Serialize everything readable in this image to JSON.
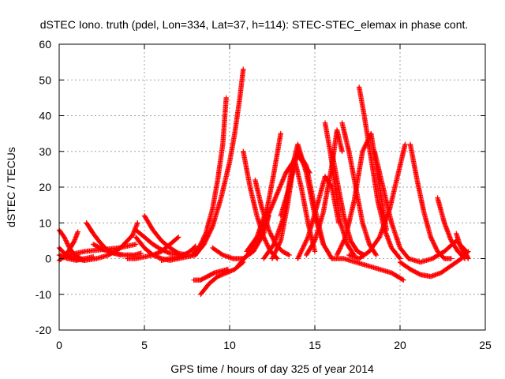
{
  "chart_data": {
    "type": "scatter",
    "title": "dSTEC Iono. truth (pdel, Lon=334, Lat=37, h=114): STEC-STEC_elemax in phase cont.",
    "xlabel": "GPS time / hours of day 325 of year 2014",
    "ylabel": "dSTEC  / TECUs",
    "xlim": [
      0,
      25
    ],
    "ylim": [
      -20,
      60
    ],
    "xticks": [
      0,
      5,
      10,
      15,
      20,
      25
    ],
    "xtick_labels": [
      "0",
      "5",
      "10",
      "15",
      "20",
      "25"
    ],
    "yticks": [
      -20,
      -10,
      0,
      10,
      20,
      30,
      40,
      50,
      60
    ],
    "ytick_labels": [
      "-20",
      "-10",
      "0",
      "10",
      "20",
      "30",
      "40",
      "50",
      "60"
    ],
    "grid": true,
    "marker": "+",
    "series_color": "#ff0000",
    "series": [
      {
        "x": [
          0.0,
          0.3,
          0.6,
          0.9,
          1.2,
          1.5
        ],
        "y": [
          8,
          6,
          3,
          1,
          0,
          -0.5
        ]
      },
      {
        "x": [
          0.0,
          0.4,
          0.8,
          1.2
        ],
        "y": [
          3,
          1,
          0,
          0.5
        ]
      },
      {
        "x": [
          0.0,
          0.5,
          1.0,
          1.5,
          2.0
        ],
        "y": [
          1,
          0,
          -0.5,
          0,
          0.5
        ]
      },
      {
        "x": [
          0.0,
          0.3,
          0.6,
          0.9,
          1.1
        ],
        "y": [
          -0.5,
          0.5,
          2.5,
          5,
          7.5
        ]
      },
      {
        "x": [
          1.6,
          2.0,
          2.4,
          2.8,
          3.2,
          3.6
        ],
        "y": [
          10,
          7,
          4.5,
          2.5,
          1.5,
          1
        ]
      },
      {
        "x": [
          0.8,
          1.5,
          2.2,
          2.9,
          3.6,
          4.3,
          4.6
        ],
        "y": [
          0,
          -0.5,
          0,
          1,
          3,
          6.5,
          10
        ]
      },
      {
        "x": [
          0.5,
          1.5,
          2.5,
          3.5,
          4.5
        ],
        "y": [
          1,
          2,
          2.5,
          3,
          4
        ]
      },
      {
        "x": [
          2.0,
          2.6,
          3.2,
          3.8,
          4.4,
          4.8
        ],
        "y": [
          4,
          2.5,
          1.5,
          1,
          1,
          1.5
        ]
      },
      {
        "x": [
          4.5,
          5.0,
          5.5,
          6.0,
          6.5,
          7.0
        ],
        "y": [
          8,
          6,
          4,
          2.5,
          1.5,
          1
        ]
      },
      {
        "x": [
          5.0,
          5.5,
          6.0,
          6.5,
          7.0,
          7.5
        ],
        "y": [
          12,
          8,
          5,
          3,
          1.5,
          1
        ]
      },
      {
        "x": [
          4.5,
          5.0,
          5.5,
          6.0,
          6.5,
          7.0,
          7.5,
          8.0
        ],
        "y": [
          6,
          3,
          1,
          0,
          -0.5,
          0,
          0.5,
          1
        ]
      },
      {
        "x": [
          4.0,
          4.5,
          5.0,
          5.5,
          6.0,
          6.5,
          7.0
        ],
        "y": [
          0,
          0,
          0.5,
          1,
          2,
          4,
          6
        ]
      },
      {
        "x": [
          6.0,
          6.5,
          7.0,
          7.5,
          7.8,
          8.0
        ],
        "y": [
          -0.5,
          0,
          0.5,
          1.5,
          2.5,
          3.5
        ]
      },
      {
        "x": [
          7.8,
          8.2,
          8.6,
          9.0,
          9.3,
          9.6,
          9.8
        ],
        "y": [
          1,
          3,
          7,
          14,
          22,
          32,
          45
        ]
      },
      {
        "x": [
          8.0,
          8.5,
          9.0,
          9.5,
          10.0,
          10.3,
          10.6,
          10.8
        ],
        "y": [
          1,
          4,
          9,
          17,
          27,
          35,
          45,
          53
        ]
      },
      {
        "x": [
          7.9,
          8.3,
          8.7,
          9.1,
          9.5,
          9.9
        ],
        "y": [
          -6,
          -6,
          -5,
          -4,
          -3.5,
          -3
        ]
      },
      {
        "x": [
          8.3,
          8.8,
          9.3,
          9.8,
          10.3,
          10.8
        ],
        "y": [
          -10,
          -7,
          -5,
          -4,
          -3,
          -1
        ]
      },
      {
        "x": [
          9.0,
          9.6,
          10.2,
          10.8,
          11.4,
          12.0,
          12.3
        ],
        "y": [
          3,
          1,
          0,
          0,
          2,
          7,
          12
        ]
      },
      {
        "x": [
          10.8,
          11.2,
          11.6,
          12.0,
          12.4,
          12.8
        ],
        "y": [
          30,
          20,
          12,
          6,
          2,
          0
        ]
      },
      {
        "x": [
          11.5,
          11.9,
          12.3,
          12.7,
          13.1,
          13.5
        ],
        "y": [
          22,
          14,
          8,
          4,
          2,
          1
        ]
      },
      {
        "x": [
          11.0,
          11.6,
          12.2,
          12.6,
          13.0
        ],
        "y": [
          2,
          6,
          14,
          24,
          35
        ]
      },
      {
        "x": [
          10.5,
          11.2,
          11.9,
          12.6,
          13.3,
          14.0,
          14.7
        ],
        "y": [
          -2,
          2,
          8,
          16,
          24,
          29,
          24
        ]
      },
      {
        "x": [
          12.5,
          13.0,
          13.4,
          13.8,
          14.2,
          14.6,
          15.0
        ],
        "y": [
          0,
          5,
          15,
          28,
          20,
          10,
          2
        ]
      },
      {
        "x": [
          12.0,
          12.6,
          13.2,
          13.6,
          14.0,
          14.5,
          15.0,
          15.5
        ],
        "y": [
          0,
          4,
          12,
          24,
          32,
          24,
          12,
          4
        ]
      },
      {
        "x": [
          13.0,
          13.5,
          14.0,
          14.5,
          15.0,
          15.5,
          16.0
        ],
        "y": [
          12,
          20,
          30,
          26,
          14,
          4,
          0
        ]
      },
      {
        "x": [
          14.0,
          14.6,
          15.2,
          15.6,
          16.0,
          16.4
        ],
        "y": [
          0,
          6,
          16,
          23,
          20,
          10
        ]
      },
      {
        "x": [
          14.5,
          15.0,
          15.5,
          16.0,
          16.3,
          16.6
        ],
        "y": [
          1,
          5,
          13,
          26,
          36,
          30
        ]
      },
      {
        "x": [
          15.6,
          15.9,
          16.2,
          16.5,
          16.9,
          17.3
        ],
        "y": [
          38,
          30,
          20,
          10,
          4,
          1
        ]
      },
      {
        "x": [
          16.0,
          16.3,
          16.7,
          17.1,
          17.5,
          17.9
        ],
        "y": [
          30,
          22,
          12,
          5,
          2,
          1
        ]
      },
      {
        "x": [
          16.6,
          17.0,
          17.4,
          17.8,
          18.2,
          18.6
        ],
        "y": [
          38,
          30,
          20,
          10,
          4,
          1
        ]
      },
      {
        "x": [
          16.3,
          16.8,
          17.3,
          17.8,
          18.3,
          18.8,
          19.2
        ],
        "y": [
          1,
          6,
          16,
          30,
          35,
          20,
          8
        ]
      },
      {
        "x": [
          17.6,
          17.9,
          18.3,
          18.7,
          19.1,
          19.5,
          20.0
        ],
        "y": [
          48,
          40,
          28,
          16,
          8,
          3,
          0
        ]
      },
      {
        "x": [
          17.0,
          17.6,
          18.2,
          18.8,
          19.4,
          20.0,
          20.3
        ],
        "y": [
          1,
          0,
          2,
          6,
          14,
          26,
          32
        ]
      },
      {
        "x": [
          16.0,
          16.7,
          17.4,
          18.1,
          18.8,
          19.5,
          20.2
        ],
        "y": [
          0,
          0,
          -1,
          -2,
          -3,
          -4,
          -6
        ]
      },
      {
        "x": [
          18.5,
          19.0,
          19.5,
          20.0,
          20.5
        ],
        "y": [
          30,
          20,
          10,
          3,
          0
        ]
      },
      {
        "x": [
          20.6,
          21.0,
          21.4,
          21.8,
          22.2,
          22.6,
          23.0
        ],
        "y": [
          32,
          22,
          13,
          6,
          2,
          0,
          0
        ]
      },
      {
        "x": [
          20.0,
          20.6,
          21.2,
          21.8,
          22.4,
          23.0,
          23.6,
          24.0
        ],
        "y": [
          -1,
          -3,
          -4.5,
          -5,
          -4,
          -2,
          0,
          2
        ]
      },
      {
        "x": [
          20.5,
          21.2,
          21.9,
          22.6,
          23.3,
          23.9
        ],
        "y": [
          0,
          -1,
          0,
          2,
          5,
          2
        ]
      },
      {
        "x": [
          22.2,
          22.6,
          23.0,
          23.4,
          23.8
        ],
        "y": [
          17,
          10,
          5,
          2,
          0
        ]
      },
      {
        "x": [
          23.3,
          23.5,
          23.7,
          23.9,
          24.0
        ],
        "y": [
          7,
          4,
          2,
          1,
          0
        ]
      }
    ]
  }
}
